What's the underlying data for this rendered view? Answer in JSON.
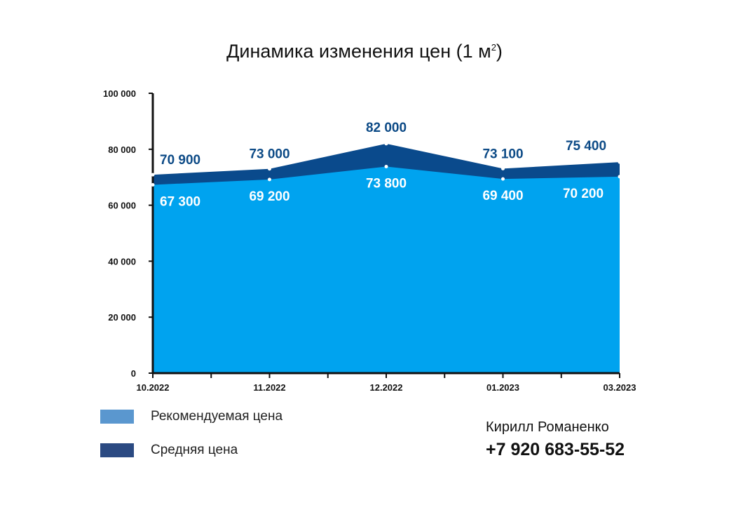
{
  "chart_data": {
    "type": "area",
    "title": "Динамика изменения цен (1 м",
    "title_sup": "2",
    "title_close": ")",
    "categories": [
      "10.2022",
      "11.2022",
      "12.2022",
      "01.2023",
      "03.2023"
    ],
    "series": [
      {
        "name": "Средняя цена",
        "values": [
          70900,
          73000,
          82000,
          73100,
          75400
        ],
        "labels": [
          "70 900",
          "73 000",
          "82 000",
          "73 100",
          "75 400"
        ],
        "color": "#0a4a8c",
        "label_color": "#0c4a86"
      },
      {
        "name": "Рекомендуемая цена",
        "values": [
          67300,
          69200,
          73800,
          69400,
          70200
        ],
        "labels": [
          "67 300",
          "69 200",
          "73 800",
          "69 400",
          "70 200"
        ],
        "color": "#00a3ef",
        "label_color": "#ffffff"
      }
    ],
    "y_ticks": [
      0,
      20000,
      40000,
      60000,
      80000,
      100000
    ],
    "y_tick_labels": [
      "0",
      "20 000",
      "40 000",
      "60 000",
      "80 000",
      "100 000"
    ],
    "ylim": [
      0,
      100000
    ],
    "grid": false
  },
  "legend": {
    "items": [
      {
        "label": "Рекомендуемая цена",
        "color": "#5a97cf"
      },
      {
        "label": "Средняя цена",
        "color": "#2b4a82"
      }
    ]
  },
  "contact": {
    "name": "Кирилл Романенко",
    "phone": "+7 920 683-55-52"
  }
}
